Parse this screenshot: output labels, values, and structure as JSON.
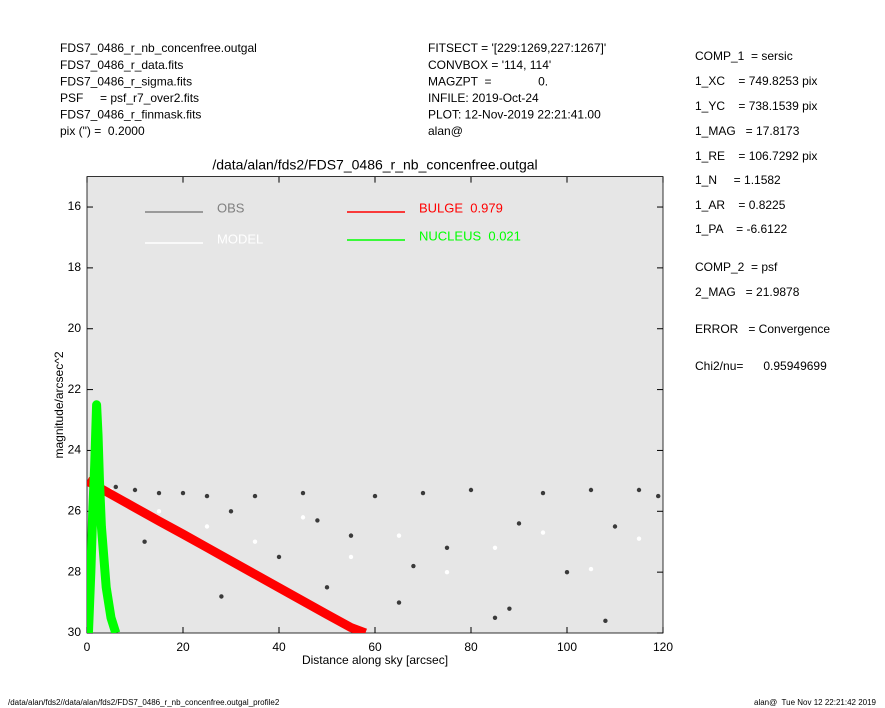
{
  "header": {
    "left": [
      "FDS7_0486_r_nb_concenfree.outgal",
      "FDS7_0486_r_data.fits",
      "FDS7_0486_r_sigma.fits",
      "PSF     = psf_r7_over2.fits",
      "FDS7_0486_r_finmask.fits",
      "pix (\") =  0.2000"
    ],
    "middle": [
      "FITSECT = '[229:1269,227:1267]'",
      "CONVBOX = '114, 114'",
      "MAGZPT  =              0.",
      "INFILE: 2019-Oct-24",
      "PLOT: 12-Nov-2019 22:21:41.00",
      "alan@"
    ],
    "right": [
      "COMP_1  = sersic",
      "1_XC    = 749.8253 pix",
      "1_YC    = 738.1539 pix",
      "1_MAG   = 17.8173",
      "1_RE    = 106.7292 pix",
      "1_N     = 1.1582",
      "1_AR    = 0.8225",
      "1_PA    = -6.6122",
      "COMP_2  = psf",
      "2_MAG   = 21.9878",
      "ERROR   = Convergence",
      "Chi2/nu=      0.95949699"
    ]
  },
  "footer": {
    "left": "/data/alan/fds2//data/alan/fds2/FDS7_0486_r_nb_concenfree.outgal_profile2",
    "right": "alan@  Tue Nov 12 22:21:42 2019"
  },
  "chart_data": {
    "type": "scatter",
    "title": "/data/alan/fds2/FDS7_0486_r_nb_concenfree.outgal",
    "x_label": "Distance along sky [arcsec]",
    "y_label": "magnitude/arcsec^2",
    "xlim": [
      0,
      120
    ],
    "ylim": [
      30,
      15
    ],
    "xticks": [
      0,
      20,
      40,
      60,
      80,
      100,
      120
    ],
    "yticks": [
      16,
      18,
      20,
      22,
      24,
      26,
      28,
      30
    ],
    "background": "#e6e6e6",
    "series": [
      {
        "name": "OBS",
        "color": "#808080",
        "point_color": "#3a3a3a",
        "marker": "dot",
        "x": [
          3,
          6,
          10,
          15,
          20,
          25,
          30,
          35,
          40,
          45,
          50,
          55,
          60,
          65,
          70,
          75,
          80,
          85,
          90,
          95,
          100,
          105,
          110,
          115,
          119,
          12,
          28,
          48,
          68,
          88,
          108
        ],
        "values": [
          25.0,
          25.2,
          25.3,
          25.4,
          25.4,
          25.5,
          26.0,
          25.5,
          27.5,
          25.4,
          28.5,
          26.8,
          25.5,
          29.0,
          25.4,
          27.2,
          25.3,
          29.5,
          26.4,
          25.4,
          28.0,
          25.3,
          26.5,
          25.3,
          25.5,
          27.0,
          28.8,
          26.3,
          27.8,
          29.2,
          29.6
        ]
      },
      {
        "name": "MODEL",
        "color": "#ffffff",
        "marker": "dot",
        "x": [
          5,
          15,
          25,
          35,
          45,
          55,
          65,
          75,
          85,
          95,
          105,
          115
        ],
        "values": [
          25.3,
          26.0,
          26.5,
          27.0,
          26.2,
          27.5,
          26.8,
          28.0,
          27.2,
          26.7,
          27.9,
          26.9
        ]
      },
      {
        "name": "BULGE  0.979",
        "color": "#ff0000",
        "marker": "line",
        "x": [
          0,
          5,
          10,
          15,
          20,
          25,
          30,
          35,
          40,
          45,
          50,
          55,
          58
        ],
        "values": [
          25.0,
          25.44,
          25.88,
          26.32,
          26.75,
          27.19,
          27.63,
          28.07,
          28.51,
          28.95,
          29.39,
          29.82,
          30.0
        ]
      },
      {
        "name": "NUCLEUS  0.021",
        "color": "#00ff00",
        "marker": "line",
        "x": [
          0.3,
          0.8,
          1.2,
          1.6,
          2.0,
          2.3,
          2.6,
          3.0,
          3.5,
          4.0,
          5.0,
          6.0
        ],
        "values": [
          30,
          28,
          26,
          24.5,
          22.5,
          23.5,
          25.0,
          26.5,
          27.5,
          28.5,
          29.5,
          30
        ]
      }
    ]
  }
}
